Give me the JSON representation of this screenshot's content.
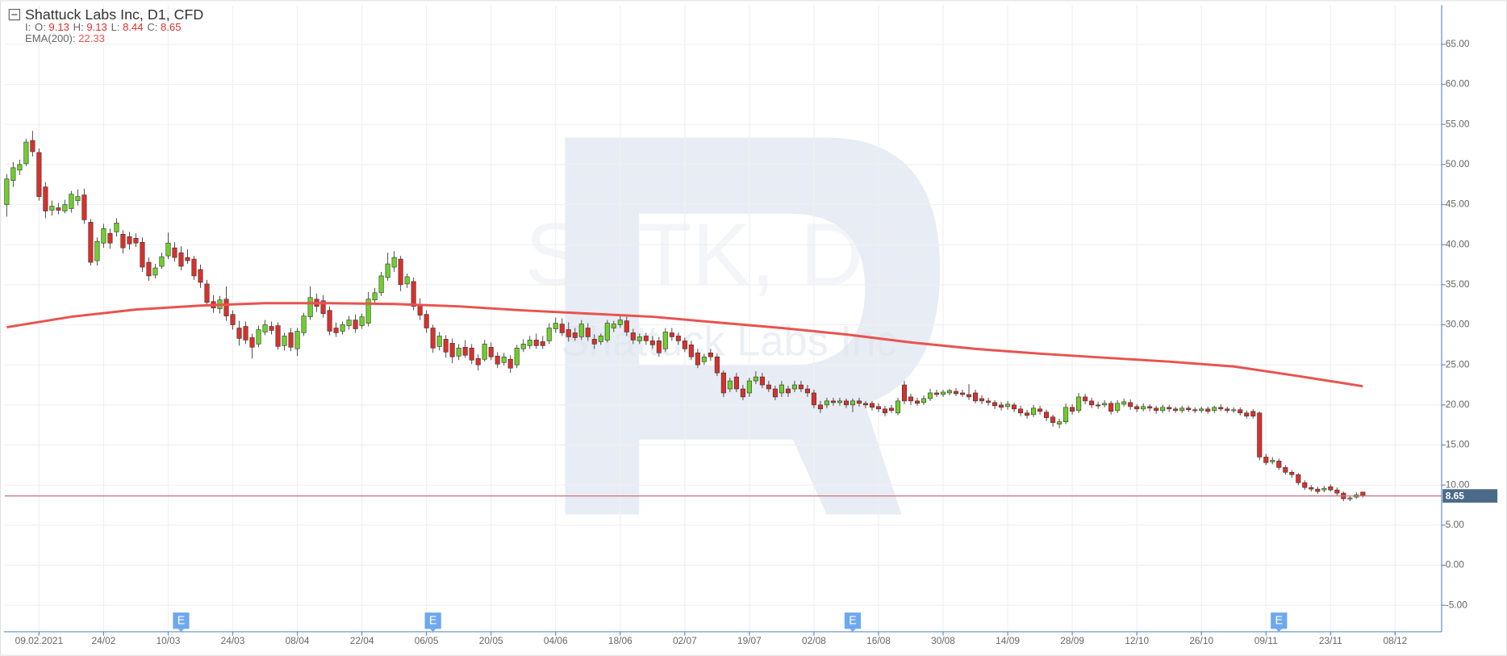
{
  "chart_data": {
    "type": "candlestick",
    "title": "Shattuck Labs Inc, D1, CFD",
    "legend_prefix": "I:",
    "ohlc_labels": [
      "O:",
      "H:",
      "L:",
      "C:"
    ],
    "watermark": [
      "STTK, D1",
      "Shattuck Labs Inc"
    ],
    "up_color": "#6fcf2b",
    "down_color": "#d9302c",
    "grid": true,
    "xlim": [
      -0.3,
      222.2
    ],
    "ylim": [
      -8.3,
      69.9
    ],
    "yticks": [
      {
        "value": -5,
        "label": "-5.00"
      },
      {
        "value": 0,
        "label": "0.00"
      },
      {
        "value": 5,
        "label": "5.00"
      },
      {
        "value": 10,
        "label": "10.00"
      },
      {
        "value": 15,
        "label": "15.00"
      },
      {
        "value": 20,
        "label": "20.00"
      },
      {
        "value": 25,
        "label": "25.00"
      },
      {
        "value": 30,
        "label": "30.00"
      },
      {
        "value": 35,
        "label": "35.00"
      },
      {
        "value": 40,
        "label": "40.00"
      },
      {
        "value": 45,
        "label": "45.00"
      },
      {
        "value": 50,
        "label": "50.00"
      },
      {
        "value": 55,
        "label": "55.00"
      },
      {
        "value": 60,
        "label": "60.00"
      },
      {
        "value": 65,
        "label": "65.00"
      }
    ],
    "xticks": [
      {
        "value": 5,
        "label": "09.02.2021"
      },
      {
        "value": 15,
        "label": "24/02"
      },
      {
        "value": 25,
        "label": "10/03"
      },
      {
        "value": 35,
        "label": "24/03"
      },
      {
        "value": 45,
        "label": "08/04"
      },
      {
        "value": 55,
        "label": "22/04"
      },
      {
        "value": 65,
        "label": "06/05"
      },
      {
        "value": 75,
        "label": "20/05"
      },
      {
        "value": 85,
        "label": "04/06"
      },
      {
        "value": 95,
        "label": "18/06"
      },
      {
        "value": 105,
        "label": "02/07"
      },
      {
        "value": 115,
        "label": "19/07"
      },
      {
        "value": 125,
        "label": "02/08"
      },
      {
        "value": 135,
        "label": "16/08"
      },
      {
        "value": 145,
        "label": "30/08"
      },
      {
        "value": 155,
        "label": "14/09"
      },
      {
        "value": 165,
        "label": "28/09"
      },
      {
        "value": 175,
        "label": "12/10"
      },
      {
        "value": 185,
        "label": "26/10"
      },
      {
        "value": 195,
        "label": "09/11"
      },
      {
        "value": 205,
        "label": "23/11"
      },
      {
        "value": 215,
        "label": "08/12"
      }
    ],
    "events": [
      {
        "x": 27,
        "label": "E"
      },
      {
        "x": 66,
        "label": "E"
      },
      {
        "x": 131,
        "label": "E"
      },
      {
        "x": 197,
        "label": "E"
      }
    ],
    "ema": {
      "label": "EMA(200):",
      "color": "#e8534f",
      "x": [
        0,
        10,
        20,
        30,
        40,
        50,
        60,
        70,
        80,
        90,
        100,
        110,
        120,
        130,
        140,
        150,
        160,
        170,
        180,
        190,
        200,
        210
      ],
      "values": [
        29.7,
        31.0,
        31.9,
        32.4,
        32.7,
        32.7,
        32.6,
        32.3,
        31.8,
        31.4,
        31.0,
        30.3,
        29.6,
        28.8,
        27.8,
        27.0,
        26.4,
        25.9,
        25.4,
        24.8,
        23.6,
        22.33
      ]
    },
    "ohlc": [
      [
        45.0,
        48.8,
        43.5,
        48.2
      ],
      [
        48.0,
        50.3,
        47.2,
        49.6
      ],
      [
        49.3,
        50.6,
        48.7,
        50.0
      ],
      [
        50.1,
        53.2,
        49.8,
        52.8
      ],
      [
        53.0,
        54.2,
        51.0,
        51.6
      ],
      [
        51.5,
        52.0,
        45.5,
        46.0
      ],
      [
        47.2,
        47.8,
        43.3,
        44.2
      ],
      [
        44.3,
        45.5,
        43.6,
        44.8
      ],
      [
        44.6,
        45.2,
        43.8,
        44.3
      ],
      [
        44.2,
        45.6,
        43.9,
        45.0
      ],
      [
        44.5,
        46.7,
        44.0,
        46.3
      ],
      [
        45.5,
        46.9,
        44.9,
        46.0
      ],
      [
        46.2,
        47.0,
        42.6,
        43.1
      ],
      [
        42.8,
        43.2,
        37.4,
        37.8
      ],
      [
        38.0,
        40.9,
        37.4,
        40.4
      ],
      [
        40.2,
        42.6,
        39.6,
        42.0
      ],
      [
        41.4,
        42.0,
        39.5,
        40.2
      ],
      [
        41.6,
        43.3,
        41.0,
        42.7
      ],
      [
        41.3,
        41.8,
        38.9,
        39.6
      ],
      [
        41.0,
        41.6,
        39.4,
        40.1
      ],
      [
        40.8,
        41.4,
        39.7,
        40.2
      ],
      [
        40.3,
        40.9,
        36.6,
        37.2
      ],
      [
        37.8,
        38.4,
        35.5,
        36.1
      ],
      [
        36.2,
        37.6,
        35.8,
        37.1
      ],
      [
        37.3,
        39.0,
        37.0,
        38.5
      ],
      [
        38.6,
        41.5,
        38.2,
        40.2
      ],
      [
        39.6,
        40.3,
        37.9,
        38.4
      ],
      [
        39.0,
        39.8,
        36.8,
        37.3
      ],
      [
        38.4,
        39.4,
        37.6,
        38.0
      ],
      [
        38.2,
        38.6,
        35.6,
        36.1
      ],
      [
        36.9,
        37.5,
        34.6,
        35.3
      ],
      [
        35.1,
        35.6,
        32.4,
        32.8
      ],
      [
        32.9,
        33.7,
        31.5,
        32.1
      ],
      [
        32.0,
        33.6,
        31.4,
        33.1
      ],
      [
        33.2,
        34.8,
        30.5,
        31.1
      ],
      [
        31.3,
        31.8,
        29.4,
        30.0
      ],
      [
        29.6,
        30.5,
        27.4,
        28.3
      ],
      [
        29.8,
        30.4,
        27.6,
        28.1
      ],
      [
        28.4,
        28.9,
        25.8,
        27.2
      ],
      [
        27.6,
        29.9,
        27.2,
        29.4
      ],
      [
        29.1,
        30.6,
        28.7,
        30.0
      ],
      [
        29.8,
        30.4,
        28.8,
        29.3
      ],
      [
        29.9,
        30.3,
        26.9,
        27.3
      ],
      [
        27.4,
        29.0,
        26.8,
        28.6
      ],
      [
        29.0,
        29.6,
        26.7,
        27.2
      ],
      [
        27.0,
        29.6,
        26.1,
        29.2
      ],
      [
        29.0,
        31.5,
        28.6,
        31.1
      ],
      [
        31.0,
        34.8,
        30.6,
        33.4
      ],
      [
        33.2,
        33.9,
        31.6,
        32.3
      ],
      [
        33.0,
        33.7,
        30.9,
        31.4
      ],
      [
        31.8,
        32.3,
        28.7,
        29.2
      ],
      [
        29.6,
        30.3,
        28.5,
        29.0
      ],
      [
        29.2,
        30.4,
        28.8,
        30.0
      ],
      [
        29.9,
        31.1,
        29.4,
        30.6
      ],
      [
        30.6,
        31.3,
        29.0,
        29.5
      ],
      [
        29.9,
        31.4,
        29.5,
        31.0
      ],
      [
        30.2,
        34.1,
        29.8,
        33.2
      ],
      [
        33.1,
        34.6,
        32.6,
        34.0
      ],
      [
        34.0,
        36.6,
        33.6,
        36.1
      ],
      [
        35.9,
        39.0,
        35.5,
        37.6
      ],
      [
        37.2,
        39.2,
        36.6,
        38.4
      ],
      [
        38.2,
        38.6,
        34.2,
        35.0
      ],
      [
        35.1,
        36.4,
        34.6,
        36.0
      ],
      [
        35.4,
        35.9,
        31.8,
        32.3
      ],
      [
        32.5,
        33.3,
        30.6,
        31.2
      ],
      [
        31.3,
        31.8,
        29.0,
        29.6
      ],
      [
        29.6,
        30.0,
        26.5,
        27.1
      ],
      [
        27.3,
        29.1,
        26.8,
        28.6
      ],
      [
        28.2,
        28.7,
        25.9,
        26.6
      ],
      [
        27.7,
        28.3,
        25.2,
        26.0
      ],
      [
        26.1,
        27.6,
        25.6,
        27.1
      ],
      [
        27.2,
        28.1,
        25.9,
        26.2
      ],
      [
        27.1,
        27.6,
        25.1,
        25.6
      ],
      [
        25.8,
        26.3,
        24.3,
        25.0
      ],
      [
        25.7,
        28.1,
        25.4,
        27.6
      ],
      [
        27.2,
        27.8,
        25.6,
        26.0
      ],
      [
        26.1,
        26.6,
        24.6,
        25.1
      ],
      [
        25.3,
        26.5,
        24.9,
        26.0
      ],
      [
        25.7,
        26.2,
        24.0,
        24.6
      ],
      [
        25.0,
        27.5,
        24.6,
        27.1
      ],
      [
        27.0,
        28.2,
        26.6,
        27.6
      ],
      [
        27.4,
        28.6,
        27.0,
        28.1
      ],
      [
        28.1,
        28.9,
        27.0,
        27.4
      ],
      [
        27.9,
        28.6,
        27.0,
        27.4
      ],
      [
        28.0,
        30.2,
        27.6,
        29.6
      ],
      [
        29.5,
        30.9,
        29.0,
        30.2
      ],
      [
        30.1,
        30.8,
        28.6,
        29.0
      ],
      [
        29.4,
        30.3,
        27.9,
        28.5
      ],
      [
        29.0,
        29.6,
        28.0,
        28.4
      ],
      [
        28.5,
        30.6,
        28.1,
        30.1
      ],
      [
        29.6,
        30.2,
        28.0,
        28.5
      ],
      [
        28.2,
        28.8,
        27.0,
        27.6
      ],
      [
        27.9,
        28.9,
        27.5,
        28.6
      ],
      [
        28.1,
        30.6,
        27.8,
        30.2
      ],
      [
        29.6,
        30.5,
        29.1,
        30.1
      ],
      [
        30.0,
        31.3,
        29.6,
        30.6
      ],
      [
        30.5,
        31.0,
        28.6,
        29.1
      ],
      [
        29.0,
        29.5,
        27.6,
        28.1
      ],
      [
        28.0,
        28.9,
        27.6,
        28.5
      ],
      [
        28.6,
        29.0,
        27.5,
        28.0
      ],
      [
        28.0,
        28.6,
        27.0,
        27.5
      ],
      [
        28.0,
        28.5,
        26.0,
        26.5
      ],
      [
        27.0,
        29.6,
        26.6,
        29.1
      ],
      [
        29.0,
        29.6,
        28.0,
        28.5
      ],
      [
        28.6,
        29.0,
        27.5,
        28.0
      ],
      [
        28.0,
        28.4,
        26.6,
        27.0
      ],
      [
        27.5,
        28.0,
        25.6,
        26.0
      ],
      [
        26.5,
        27.0,
        24.6,
        25.0
      ],
      [
        25.4,
        26.4,
        25.0,
        26.0
      ],
      [
        26.5,
        27.0,
        25.5,
        26.0
      ],
      [
        26.0,
        26.4,
        23.6,
        24.0
      ],
      [
        24.0,
        24.3,
        21.0,
        21.5
      ],
      [
        22.0,
        23.4,
        21.6,
        23.0
      ],
      [
        23.5,
        24.0,
        21.6,
        22.0
      ],
      [
        22.0,
        22.5,
        20.6,
        21.0
      ],
      [
        21.5,
        23.4,
        21.0,
        23.0
      ],
      [
        23.0,
        24.2,
        22.6,
        23.5
      ],
      [
        23.5,
        24.0,
        22.1,
        22.5
      ],
      [
        22.5,
        23.0,
        21.6,
        22.0
      ],
      [
        22.0,
        22.4,
        20.6,
        21.0
      ],
      [
        21.5,
        23.0,
        21.0,
        22.5
      ],
      [
        22.0,
        22.4,
        21.0,
        21.5
      ],
      [
        22.0,
        23.0,
        21.6,
        22.5
      ],
      [
        22.5,
        23.0,
        21.6,
        22.0
      ],
      [
        22.0,
        22.5,
        21.0,
        21.5
      ],
      [
        21.5,
        21.9,
        19.6,
        20.0
      ],
      [
        20.0,
        20.5,
        19.0,
        19.5
      ],
      [
        20.0,
        20.9,
        19.6,
        20.5
      ],
      [
        20.5,
        20.9,
        19.9,
        20.3
      ],
      [
        20.3,
        20.9,
        19.9,
        20.5
      ],
      [
        20.5,
        20.8,
        19.6,
        20.0
      ],
      [
        20.0,
        20.8,
        19.1,
        20.5
      ],
      [
        20.5,
        20.9,
        19.8,
        20.2
      ],
      [
        20.2,
        20.5,
        19.6,
        20.0
      ],
      [
        20.2,
        20.5,
        19.3,
        19.7
      ],
      [
        19.8,
        20.2,
        19.1,
        19.5
      ],
      [
        19.5,
        19.9,
        18.6,
        19.0
      ],
      [
        19.6,
        20.0,
        19.0,
        19.3
      ],
      [
        19.0,
        20.9,
        18.7,
        20.5
      ],
      [
        22.5,
        23.0,
        20.1,
        20.5
      ],
      [
        21.0,
        21.4,
        20.0,
        20.5
      ],
      [
        20.5,
        20.9,
        19.9,
        20.2
      ],
      [
        20.3,
        21.2,
        20.0,
        20.8
      ],
      [
        20.8,
        22.0,
        20.5,
        21.5
      ],
      [
        21.5,
        21.9,
        21.0,
        21.3
      ],
      [
        21.3,
        21.9,
        21.0,
        21.6
      ],
      [
        21.5,
        22.0,
        21.2,
        21.8
      ],
      [
        21.7,
        22.1,
        21.1,
        21.4
      ],
      [
        21.5,
        21.9,
        21.0,
        21.3
      ],
      [
        21.3,
        22.6,
        20.6,
        21.0
      ],
      [
        21.5,
        21.9,
        20.2,
        20.5
      ],
      [
        20.8,
        21.2,
        20.1,
        20.5
      ],
      [
        20.5,
        20.9,
        19.9,
        20.3
      ],
      [
        20.3,
        20.6,
        19.5,
        19.9
      ],
      [
        20.0,
        20.4,
        19.3,
        19.7
      ],
      [
        19.8,
        20.5,
        19.4,
        20.1
      ],
      [
        20.0,
        20.3,
        19.1,
        19.5
      ],
      [
        19.5,
        19.9,
        18.6,
        19.0
      ],
      [
        19.0,
        19.4,
        18.3,
        18.7
      ],
      [
        18.8,
        20.0,
        18.5,
        19.6
      ],
      [
        19.5,
        19.9,
        18.8,
        19.2
      ],
      [
        19.1,
        19.4,
        18.0,
        18.4
      ],
      [
        18.5,
        18.8,
        17.3,
        17.8
      ],
      [
        17.6,
        18.3,
        17.1,
        17.9
      ],
      [
        17.9,
        20.2,
        17.6,
        19.7
      ],
      [
        19.7,
        20.1,
        18.8,
        19.2
      ],
      [
        19.3,
        21.5,
        19.0,
        21.0
      ],
      [
        21.0,
        21.4,
        20.1,
        20.5
      ],
      [
        20.5,
        20.9,
        19.6,
        20.0
      ],
      [
        20.0,
        20.4,
        19.5,
        19.9
      ],
      [
        20.0,
        20.6,
        19.7,
        20.2
      ],
      [
        20.2,
        20.5,
        18.8,
        19.2
      ],
      [
        19.3,
        20.6,
        19.0,
        20.2
      ],
      [
        20.1,
        20.8,
        19.8,
        20.4
      ],
      [
        20.3,
        20.7,
        19.4,
        19.8
      ],
      [
        19.8,
        20.1,
        19.1,
        19.5
      ],
      [
        19.5,
        20.2,
        19.2,
        19.8
      ],
      [
        19.8,
        20.1,
        19.2,
        19.6
      ],
      [
        19.6,
        19.9,
        18.9,
        19.3
      ],
      [
        19.3,
        20.0,
        19.0,
        19.7
      ],
      [
        19.7,
        20.0,
        19.1,
        19.5
      ],
      [
        19.5,
        19.8,
        19.0,
        19.3
      ],
      [
        19.3,
        19.9,
        19.0,
        19.6
      ],
      [
        19.6,
        19.9,
        19.1,
        19.4
      ],
      [
        19.4,
        19.7,
        19.0,
        19.3
      ],
      [
        19.3,
        19.8,
        19.0,
        19.5
      ],
      [
        19.5,
        19.8,
        18.9,
        19.2
      ],
      [
        19.3,
        19.9,
        19.0,
        19.7
      ],
      [
        19.7,
        20.1,
        19.2,
        19.5
      ],
      [
        19.5,
        19.8,
        19.0,
        19.3
      ],
      [
        19.3,
        19.7,
        19.0,
        19.4
      ],
      [
        19.4,
        19.7,
        18.7,
        19.0
      ],
      [
        19.0,
        19.3,
        18.3,
        18.6
      ],
      [
        19.2,
        19.5,
        18.3,
        18.6
      ],
      [
        19.0,
        19.2,
        13.1,
        13.5
      ],
      [
        13.5,
        13.9,
        12.5,
        12.8
      ],
      [
        12.9,
        13.5,
        12.6,
        13.1
      ],
      [
        13.0,
        13.3,
        11.9,
        12.2
      ],
      [
        12.2,
        12.5,
        11.3,
        11.6
      ],
      [
        11.6,
        11.9,
        10.9,
        11.3
      ],
      [
        11.3,
        11.5,
        10.0,
        10.3
      ],
      [
        10.3,
        10.6,
        9.4,
        9.7
      ],
      [
        9.7,
        10.0,
        9.2,
        9.5
      ],
      [
        9.5,
        9.8,
        8.9,
        9.2
      ],
      [
        9.4,
        9.9,
        9.1,
        9.6
      ],
      [
        9.8,
        10.1,
        9.2,
        9.4
      ],
      [
        9.4,
        9.7,
        8.7,
        9.0
      ],
      [
        9.0,
        9.2,
        8.0,
        8.3
      ],
      [
        8.3,
        8.7,
        8.0,
        8.4
      ],
      [
        8.5,
        9.1,
        8.3,
        8.8
      ],
      [
        9.13,
        9.13,
        8.44,
        8.65
      ]
    ]
  }
}
